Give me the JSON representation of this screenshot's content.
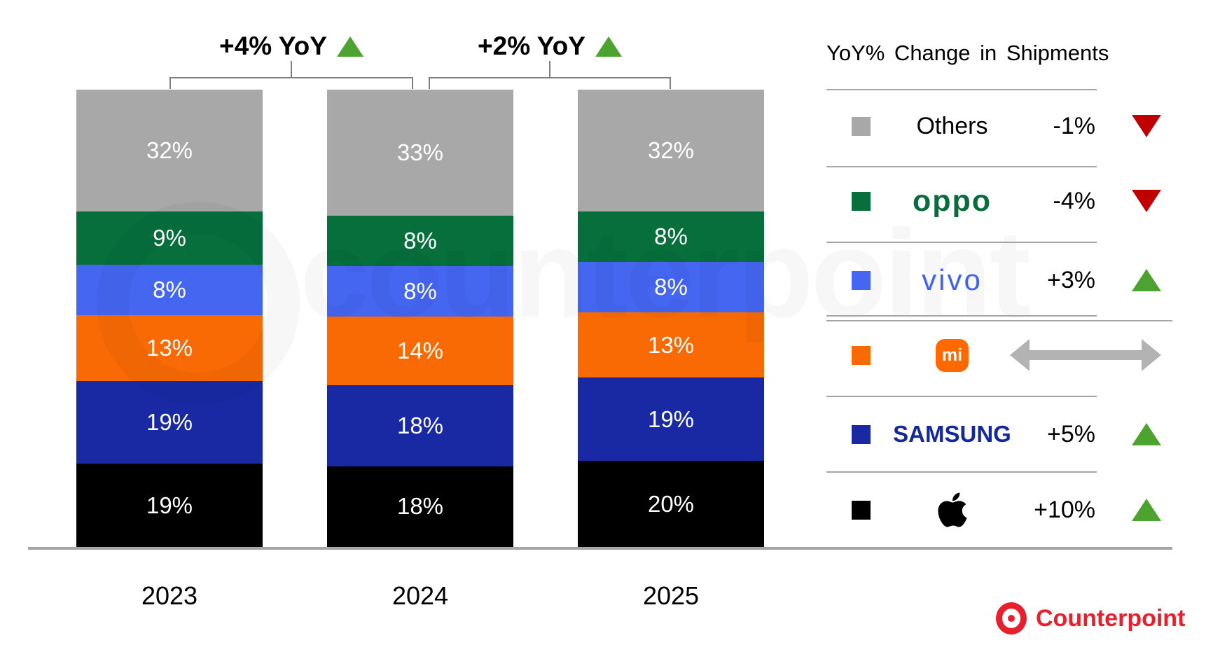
{
  "branding": {
    "watermark_text": "counterpoint",
    "logo_text": "Counterpoint"
  },
  "chart_data": {
    "type": "bar",
    "stacked": true,
    "categories": [
      "2023",
      "2024",
      "2025"
    ],
    "series": [
      {
        "name": "Apple",
        "color": "#000000",
        "values": [
          19,
          18,
          20
        ]
      },
      {
        "name": "Samsung",
        "color": "#1829a3",
        "values": [
          19,
          18,
          19
        ]
      },
      {
        "name": "Xiaomi",
        "color": "#f96a05",
        "values": [
          13,
          14,
          13
        ]
      },
      {
        "name": "vivo",
        "color": "#4566f1",
        "values": [
          8,
          8,
          8
        ]
      },
      {
        "name": "OPPO",
        "color": "#076f3c",
        "values": [
          9,
          8,
          8
        ]
      },
      {
        "name": "Others",
        "color": "#a8a8a8",
        "values": [
          32,
          33,
          32
        ]
      }
    ],
    "value_suffix": "%",
    "ylim": [
      0,
      100
    ],
    "grid": false,
    "annotations": [
      {
        "label": "+4% YoY",
        "direction": "up",
        "from": "2023",
        "to": "2024"
      },
      {
        "label": "+2% YoY",
        "direction": "up",
        "from": "2024",
        "to": "2025"
      }
    ],
    "legend_position": "right",
    "legend_title": "YoY% Change in Shipments",
    "legend": [
      {
        "name": "Others",
        "display": "Others",
        "change": "-1%",
        "direction": "down"
      },
      {
        "name": "OPPO",
        "display": "oppo",
        "change": "-4%",
        "direction": "down"
      },
      {
        "name": "vivo",
        "display": "vivo",
        "change": "+3%",
        "direction": "up"
      },
      {
        "name": "Xiaomi",
        "display": "mi",
        "change": "",
        "direction": "flat"
      },
      {
        "name": "Samsung",
        "display": "SAMSUNG",
        "change": "+5%",
        "direction": "up"
      },
      {
        "name": "Apple",
        "display": "",
        "change": "+10%",
        "direction": "up"
      }
    ],
    "colors": {
      "up": "#4da32f",
      "down": "#c00000",
      "flat_arrow": "#b3b3b3",
      "axis": "#a6a6a6",
      "bracket": "#7f7f7f"
    }
  }
}
